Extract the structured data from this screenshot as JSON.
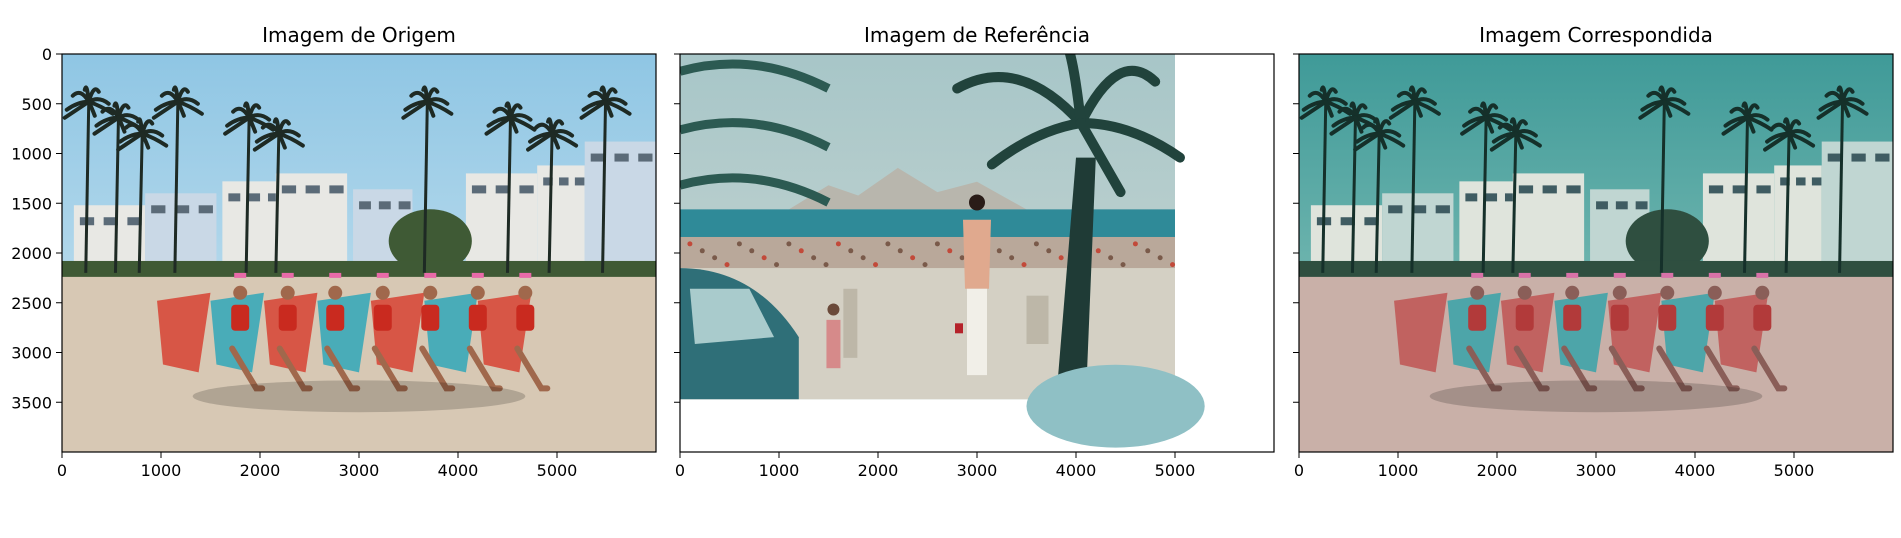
{
  "chart_data": [
    {
      "type": "image",
      "title": "Imagem de Origem",
      "image_description": "Beach scene: women in red swimsuits and pink visors sitting in red and teal beach chairs on sand, palm trees and beachfront houses behind under a blue sky",
      "image_extent": {
        "width": 6000,
        "height": 4000
      },
      "xlim": [
        0,
        6000
      ],
      "ylim": [
        4000,
        0
      ],
      "xticks": [
        0,
        1000,
        2000,
        3000,
        4000,
        5000
      ],
      "yticks": [
        0,
        500,
        1000,
        1500,
        2000,
        2500,
        3000,
        3500
      ],
      "show_yticklabels": true
    },
    {
      "type": "image",
      "title": "Imagem de Referência",
      "image_description": "Vintage teal-toned beach photo: woman in patterned blouse and white trousers, child, palm trees, crowded beach, mountains and sea behind, parked car at left",
      "image_extent": {
        "width": 5000,
        "height": 3470
      },
      "xlim": [
        0,
        6000
      ],
      "ylim": [
        4000,
        0
      ],
      "xticks": [
        0,
        1000,
        2000,
        3000,
        4000,
        5000
      ],
      "yticks": [
        0,
        500,
        1000,
        1500,
        2000,
        2500,
        3000,
        3500
      ],
      "show_yticklabels": false
    },
    {
      "type": "image",
      "title": "Imagem Correspondida",
      "image_description": "Same beach scene as source image, color-matched to the reference with teal/cyan sky and faded tones",
      "image_extent": {
        "width": 6000,
        "height": 4000
      },
      "xlim": [
        0,
        6000
      ],
      "ylim": [
        4000,
        0
      ],
      "xticks": [
        0,
        1000,
        2000,
        3000,
        4000,
        5000
      ],
      "yticks": [
        0,
        500,
        1000,
        1500,
        2000,
        2500,
        3000,
        3500
      ],
      "show_yticklabels": false
    }
  ],
  "colors": {
    "axis": "#000000",
    "source_sky_top": "#8fc6e4",
    "source_sky_bottom": "#cfe6f1",
    "source_sand": "#d7c8b4",
    "reference_sky": "#9ec0c4",
    "reference_sea": "#2f8a98",
    "reference_sand": "#d4d0c4",
    "matched_sky_top": "#3f9a98",
    "matched_sky_bottom": "#93c9c0",
    "matched_sand": "#c9b0a8",
    "chair_red": "#d7493a",
    "chair_teal": "#3aa9b8",
    "swimsuit_red": "#c92a1f",
    "palm_dark": "#1e2a24",
    "house_white": "#e8e8e4"
  }
}
